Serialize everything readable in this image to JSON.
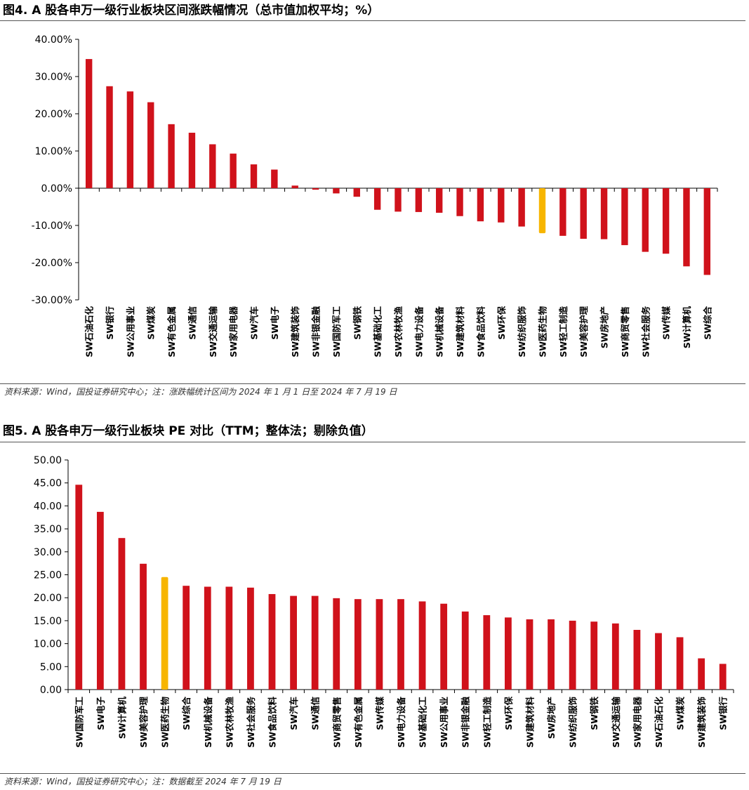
{
  "figure1": {
    "title": "图4. A 股各申万一级行业板块区间涨跌幅情况（总市值加权平均；%）",
    "source": "资料来源：Wind，国投证券研究中心；注：涨跌幅统计区间为 2024 年 1 月 1 日至 2024 年 7 月 19 日"
  },
  "figure2": {
    "title": "图5. A 股各申万一级行业板块 PE 对比（TTM；整体法；剔除负值）",
    "source": "资料来源：Wind，国投证券研究中心；注：数据截至 2024 年 7 月 19 日"
  },
  "colors": {
    "bar": "#d0121b",
    "highlight": "#f7b500",
    "axis": "#000000",
    "rule": "#555555"
  },
  "chart_data": [
    {
      "type": "bar",
      "title": "图4. A 股各申万一级行业板块区间涨跌幅情况（总市值加权平均；%）",
      "ylim": [
        -30,
        40
      ],
      "yticks": [
        "40.00%",
        "30.00%",
        "20.00%",
        "10.00%",
        "0.00%",
        "-10.00%",
        "-20.00%",
        "-30.00%"
      ],
      "ytick_values": [
        40,
        30,
        20,
        10,
        0,
        -10,
        -20,
        -30
      ],
      "categories": [
        "SW石油石化",
        "SW银行",
        "SW公用事业",
        "SW煤炭",
        "SW有色金属",
        "SW通信",
        "SW交通运输",
        "SW家用电器",
        "SW汽车",
        "SW电子",
        "SW建筑装饰",
        "SW非银金融",
        "SW国防军工",
        "SW钢铁",
        "SW基础化工",
        "SW农林牧渔",
        "SW电力设备",
        "SW机械设备",
        "SW建筑材料",
        "SW食品饮料",
        "SW环保",
        "SW纺织服饰",
        "SW医药生物",
        "SW轻工制造",
        "SW美容护理",
        "SW房地产",
        "SW商贸零售",
        "SW社会服务",
        "SW传媒",
        "SW计算机",
        "SW综合"
      ],
      "values": [
        34.7,
        27.4,
        26.0,
        23.1,
        17.2,
        14.9,
        11.8,
        9.3,
        6.4,
        5.0,
        0.7,
        -0.4,
        -1.4,
        -2.3,
        -5.8,
        -6.3,
        -6.4,
        -6.6,
        -7.5,
        -8.9,
        -9.2,
        -10.3,
        -12.1,
        -12.8,
        -13.6,
        -13.7,
        -15.3,
        -17.1,
        -17.6,
        -21.0,
        -23.3
      ],
      "highlight": "SW医药生物",
      "grid": false
    },
    {
      "type": "bar",
      "title": "图5. A 股各申万一级行业板块 PE 对比（TTM；整体法；剔除负值）",
      "ylim": [
        0,
        50
      ],
      "yticks": [
        "50.00",
        "45.00",
        "40.00",
        "35.00",
        "30.00",
        "25.00",
        "20.00",
        "15.00",
        "10.00",
        "5.00",
        "0.00"
      ],
      "ytick_values": [
        50,
        45,
        40,
        35,
        30,
        25,
        20,
        15,
        10,
        5,
        0
      ],
      "categories": [
        "SW国防军工",
        "SW电子",
        "SW计算机",
        "SW美容护理",
        "SW医药生物",
        "SW综合",
        "SW机械设备",
        "SW农林牧渔",
        "SW社会服务",
        "SW食品饮料",
        "SW汽车",
        "SW通信",
        "SW商贸零售",
        "SW有色金属",
        "SW传媒",
        "SW电力设备",
        "SW基础化工",
        "SW公用事业",
        "SW非银金融",
        "SW轻工制造",
        "SW环保",
        "SW建筑材料",
        "SW房地产",
        "SW纺织服饰",
        "SW钢铁",
        "SW交通运输",
        "SW家用电器",
        "SW石油石化",
        "SW煤炭",
        "SW建筑装饰",
        "SW银行"
      ],
      "values": [
        44.6,
        38.7,
        33.0,
        27.4,
        24.5,
        22.6,
        22.4,
        22.4,
        22.2,
        20.8,
        20.4,
        20.4,
        19.9,
        19.7,
        19.7,
        19.7,
        19.2,
        18.7,
        17.0,
        16.2,
        15.7,
        15.3,
        15.3,
        15.0,
        14.8,
        14.4,
        13.0,
        12.3,
        11.4,
        6.8,
        5.6
      ],
      "highlight": "SW医药生物",
      "grid": false
    }
  ]
}
